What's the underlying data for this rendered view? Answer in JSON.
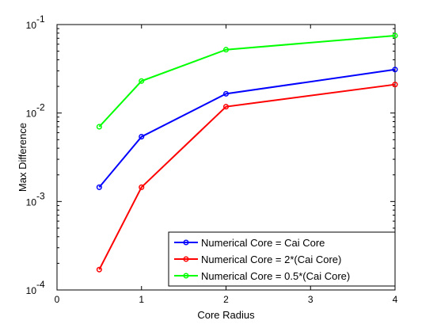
{
  "chart_data": {
    "type": "line",
    "title": "",
    "xlabel": "Core Radius",
    "ylabel": "Max Difference",
    "x": [
      0.5,
      1,
      2,
      4
    ],
    "xlim": [
      0,
      4
    ],
    "ylim": [
      0.0001,
      0.1
    ],
    "yscale": "log",
    "grid": false,
    "legend_position": "bottom-right",
    "x_ticks": [
      {
        "value": 0,
        "label": "0"
      },
      {
        "value": 1,
        "label": "1"
      },
      {
        "value": 2,
        "label": "2"
      },
      {
        "value": 3,
        "label": "3"
      },
      {
        "value": 4,
        "label": "4"
      }
    ],
    "y_ticks": [
      {
        "value": 0.0001,
        "base": "10",
        "exp": "-4"
      },
      {
        "value": 0.001,
        "base": "10",
        "exp": "-3"
      },
      {
        "value": 0.01,
        "base": "10",
        "exp": "-2"
      },
      {
        "value": 0.1,
        "base": "10",
        "exp": "-1"
      }
    ],
    "series": [
      {
        "name": "Numerical Core = Cai Core",
        "color": "#0000ff",
        "values": [
          0.00145,
          0.0054,
          0.0165,
          0.031
        ]
      },
      {
        "name": "Numerical Core = 2*(Cai Core)",
        "color": "#ff0000",
        "values": [
          0.00017,
          0.00145,
          0.0118,
          0.021
        ]
      },
      {
        "name": "Numerical Core = 0.5*(Cai Core)",
        "color": "#00ff00",
        "values": [
          0.007,
          0.023,
          0.052,
          0.075
        ]
      }
    ]
  }
}
